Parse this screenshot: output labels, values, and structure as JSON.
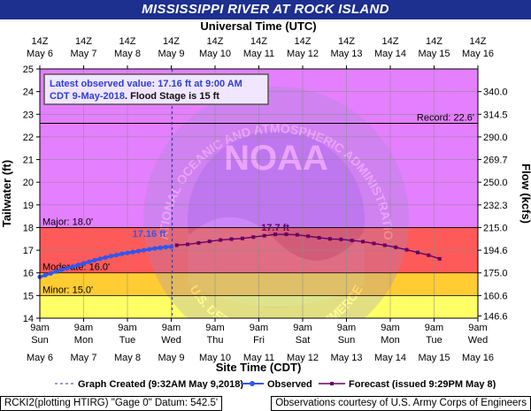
{
  "header": {
    "title": "MISSISSIPPI RIVER AT ROCK ISLAND"
  },
  "chart_data": {
    "type": "line",
    "title": "MISSISSIPPI RIVER AT ROCK ISLAND",
    "top_axis_label": "Universal Time (UTC)",
    "xlabel": "Site Time (CDT)",
    "ylabel": "Tailwater (ft)",
    "y2label": "Flow (kcfs)",
    "ylim": [
      14,
      25
    ],
    "xlim": [
      "2018-05-06 09:00",
      "2018-05-16 09:00"
    ],
    "grid": true,
    "y_ticks": [
      14,
      15,
      16,
      17,
      18,
      19,
      20,
      21,
      22,
      23,
      24,
      25
    ],
    "y2_ticks": [
      {
        "stage": 14.1,
        "label": "146.6"
      },
      {
        "stage": 15,
        "label": "160.6"
      },
      {
        "stage": 16,
        "label": "175.0"
      },
      {
        "stage": 17,
        "label": "194.6"
      },
      {
        "stage": 18,
        "label": "215.0"
      },
      {
        "stage": 19,
        "label": "232.3"
      },
      {
        "stage": 20,
        "label": "250.0"
      },
      {
        "stage": 21,
        "label": "269.7"
      },
      {
        "stage": 22,
        "label": "290.0"
      },
      {
        "stage": 23,
        "label": "314.5"
      },
      {
        "stage": 24,
        "label": "340.0"
      }
    ],
    "x_ticks_bottom": [
      {
        "time": "9am",
        "day": "Sun",
        "date": "May 6"
      },
      {
        "time": "9am",
        "day": "Mon",
        "date": "May 7"
      },
      {
        "time": "9am",
        "day": "Tue",
        "date": "May 8"
      },
      {
        "time": "9am",
        "day": "Wed",
        "date": "May 9"
      },
      {
        "time": "9am",
        "day": "Thu",
        "date": "May 10"
      },
      {
        "time": "9am",
        "day": "Fri",
        "date": "May 11"
      },
      {
        "time": "9am",
        "day": "Sat",
        "date": "May 12"
      },
      {
        "time": "9am",
        "day": "Sun",
        "date": "May 13"
      },
      {
        "time": "9am",
        "day": "Mon",
        "date": "May 14"
      },
      {
        "time": "9am",
        "day": "Tue",
        "date": "May 15"
      },
      {
        "time": "9am",
        "day": "Wed",
        "date": "May 16"
      }
    ],
    "x_ticks_top": [
      {
        "hour": "14Z",
        "date": "May 6"
      },
      {
        "hour": "14Z",
        "date": "May 7"
      },
      {
        "hour": "14Z",
        "date": "May 8"
      },
      {
        "hour": "14Z",
        "date": "May 9"
      },
      {
        "hour": "14Z",
        "date": "May 10"
      },
      {
        "hour": "14Z",
        "date": "May 11"
      },
      {
        "hour": "14Z",
        "date": "May 12"
      },
      {
        "hour": "14Z",
        "date": "May 13"
      },
      {
        "hour": "14Z",
        "date": "May 14"
      },
      {
        "hour": "14Z",
        "date": "May 15"
      },
      {
        "hour": "14Z",
        "date": "May 16"
      }
    ],
    "stage_bands": [
      {
        "from": 14,
        "to": 15,
        "color": "#ffff66"
      },
      {
        "from": 15,
        "to": 16,
        "color": "#ffcc33"
      },
      {
        "from": 16,
        "to": 18,
        "color": "#ff5a5a"
      },
      {
        "from": 18,
        "to": 25,
        "color": "#e47fff"
      }
    ],
    "thresholds": [
      {
        "label": "Minor: 15.0'",
        "value": 15.0
      },
      {
        "label": "Moderate: 16.0'",
        "value": 16.0
      },
      {
        "label": "Major: 18.0'",
        "value": 18.0
      },
      {
        "label": "Record: 22.6'",
        "value": 22.6
      }
    ],
    "series": [
      {
        "name": "Observed",
        "color": "#3355ee",
        "x": [
          "2018-05-06 09:00",
          "2018-05-06 12:00",
          "2018-05-06 15:00",
          "2018-05-06 18:00",
          "2018-05-06 21:00",
          "2018-05-07 00:00",
          "2018-05-07 03:00",
          "2018-05-07 06:00",
          "2018-05-07 09:00",
          "2018-05-07 12:00",
          "2018-05-07 15:00",
          "2018-05-07 18:00",
          "2018-05-07 21:00",
          "2018-05-08 00:00",
          "2018-05-08 03:00",
          "2018-05-08 06:00",
          "2018-05-08 09:00",
          "2018-05-08 12:00",
          "2018-05-08 15:00",
          "2018-05-08 18:00",
          "2018-05-08 21:00",
          "2018-05-09 00:00",
          "2018-05-09 03:00",
          "2018-05-09 06:00",
          "2018-05-09 09:00"
        ],
        "y": [
          15.82,
          15.9,
          15.98,
          16.06,
          16.14,
          16.21,
          16.28,
          16.35,
          16.42,
          16.49,
          16.56,
          16.62,
          16.68,
          16.74,
          16.79,
          16.84,
          16.88,
          16.92,
          16.96,
          17.0,
          17.04,
          17.08,
          17.11,
          17.14,
          17.16
        ]
      },
      {
        "name": "Forecast (issued 9:29PM May 8)",
        "color": "#660066",
        "x": [
          "2018-05-09 12:00",
          "2018-05-09 18:00",
          "2018-05-10 00:00",
          "2018-05-10 06:00",
          "2018-05-10 12:00",
          "2018-05-10 18:00",
          "2018-05-11 00:00",
          "2018-05-11 06:00",
          "2018-05-11 12:00",
          "2018-05-11 18:00",
          "2018-05-12 00:00",
          "2018-05-12 06:00",
          "2018-05-12 12:00",
          "2018-05-12 18:00",
          "2018-05-13 00:00",
          "2018-05-13 06:00",
          "2018-05-13 12:00",
          "2018-05-13 18:00",
          "2018-05-14 00:00",
          "2018-05-14 06:00",
          "2018-05-14 12:00",
          "2018-05-14 18:00",
          "2018-05-15 00:00",
          "2018-05-15 06:00",
          "2018-05-15 12:00"
        ],
        "y": [
          17.22,
          17.26,
          17.32,
          17.39,
          17.45,
          17.49,
          17.52,
          17.58,
          17.64,
          17.7,
          17.7,
          17.68,
          17.62,
          17.55,
          17.5,
          17.48,
          17.43,
          17.38,
          17.3,
          17.22,
          17.13,
          17.02,
          16.9,
          16.78,
          16.62
        ]
      }
    ],
    "annotations": [
      {
        "text": "17.16 ft",
        "at": "2018-05-09 09:00",
        "value": 17.16,
        "color": "#3355ee"
      },
      {
        "text": "17.7 ft",
        "at": "2018-05-11 18:00",
        "value": 17.7,
        "color": "#660066"
      }
    ],
    "created_at": "2018-05-09 09:32",
    "info_box": {
      "line1": "Latest observed value: 17.16 ft at 9:00 AM",
      "line2_prefix": "CDT 9-May-2018",
      "line2_suffix": ". Flood Stage is 15 ft"
    },
    "legend": {
      "created": "Graph Created (9:32AM May 9,2018)",
      "observed": "Observed",
      "forecast": "Forecast (issued 9:29PM May 8)",
      "placement": "bottom"
    },
    "watermark": {
      "text_top": "NATIONAL OCEANIC AND ATMOSPHERIC ADMINISTRATION",
      "text_bottom": "U.S. DEPARTMENT OF COMMERCE",
      "center": "NOAA"
    }
  },
  "footer": {
    "left": "RCKI2(plotting HTIRG) \"Gage 0\" Datum:  542.5'",
    "right": "Observations courtesy of U.S. Army Corps of Engineers"
  },
  "colors": {
    "banner": "#1d2f8f",
    "observed": "#3355ee",
    "forecast": "#660066",
    "major": "#e47fff",
    "moderate": "#ff5a5a",
    "minor_moderate": "#ffcc33",
    "below_minor": "#ffff66"
  }
}
